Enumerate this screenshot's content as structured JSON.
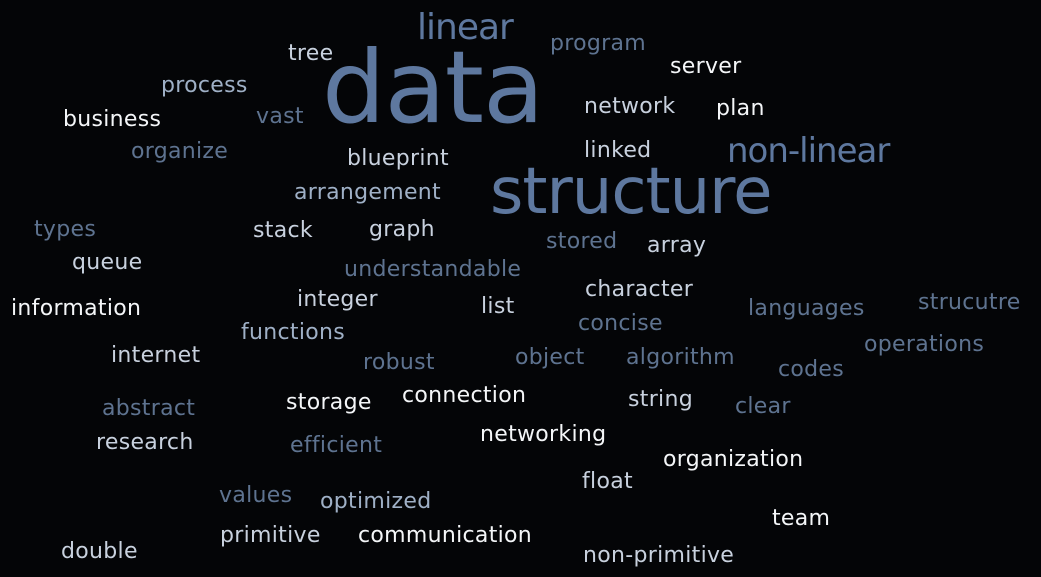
{
  "colors": {
    "background": "#040507",
    "accent_blue": "#5e789f",
    "white": "#f4f6f8",
    "light": "#c8d1de",
    "mid": "#9fb0c6",
    "dim": "#5e7390"
  },
  "words": {
    "data": "data",
    "structure": "structure",
    "linear": "linear",
    "non_linear": "non-linear",
    "program": "program",
    "tree": "tree",
    "server": "server",
    "process": "process",
    "network": "network",
    "plan": "plan",
    "business": "business",
    "vast": "vast",
    "organize": "organize",
    "blueprint": "blueprint",
    "linked": "linked",
    "arrangement": "arrangement",
    "types": "types",
    "stack": "stack",
    "graph": "graph",
    "stored": "stored",
    "array": "array",
    "queue": "queue",
    "understandable": "understandable",
    "information": "information",
    "integer": "integer",
    "list": "list",
    "character": "character",
    "languages": "languages",
    "strucutre": "strucutre",
    "functions": "functions",
    "concise": "concise",
    "operations": "operations",
    "internet": "internet",
    "robust": "robust",
    "object": "object",
    "algorithm": "algorithm",
    "codes": "codes",
    "abstract": "abstract",
    "storage": "storage",
    "connection": "connection",
    "string": "string",
    "clear": "clear",
    "research": "research",
    "efficient": "efficient",
    "networking": "networking",
    "organization": "organization",
    "float": "float",
    "values": "values",
    "optimized": "optimized",
    "team": "team",
    "primitive": "primitive",
    "communication": "communication",
    "double": "double",
    "non_primitive": "non-primitive"
  }
}
